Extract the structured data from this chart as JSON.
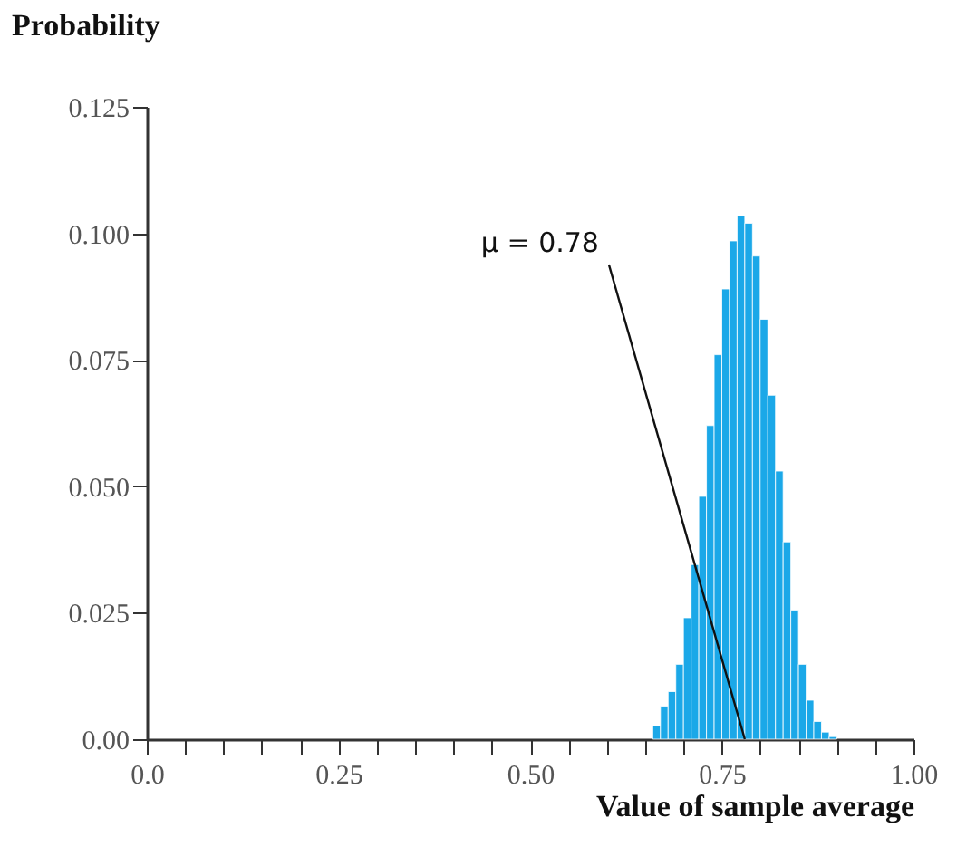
{
  "chart_data": {
    "type": "histogram",
    "xlabel": "Value of sample average",
    "ylabel": "Probability",
    "bins": [
      0.66,
      0.67,
      0.68,
      0.69,
      0.7,
      0.71,
      0.72,
      0.73,
      0.74,
      0.75,
      0.76,
      0.77,
      0.78,
      0.79,
      0.8,
      0.81,
      0.82,
      0.83,
      0.84,
      0.85,
      0.86,
      0.87,
      0.88,
      0.89,
      0.9
    ],
    "values": [
      0.0026,
      0.0065,
      0.0094,
      0.0148,
      0.024,
      0.0345,
      0.048,
      0.062,
      0.076,
      0.089,
      0.0985,
      0.1035,
      0.102,
      0.0955,
      0.083,
      0.068,
      0.053,
      0.039,
      0.0255,
      0.0148,
      0.0077,
      0.0035,
      0.0014,
      0.0005
    ],
    "color": "#1ba8e8",
    "xlim": [
      0,
      1.0
    ],
    "ylim": [
      0,
      0.125
    ],
    "xticks": [
      {
        "value": 0,
        "label": "0.0"
      },
      {
        "value": 0.05,
        "label": null
      },
      {
        "value": 0.1,
        "label": null
      },
      {
        "value": 0.15,
        "label": null
      },
      {
        "value": 0.2,
        "label": null
      },
      {
        "value": 0.25,
        "label": "0.25"
      },
      {
        "value": 0.3,
        "label": null
      },
      {
        "value": 0.35,
        "label": null
      },
      {
        "value": 0.4,
        "label": null
      },
      {
        "value": 0.45,
        "label": null
      },
      {
        "value": 0.5,
        "label": "0.50"
      },
      {
        "value": 0.55,
        "label": null
      },
      {
        "value": 0.6,
        "label": null
      },
      {
        "value": 0.65,
        "label": null
      },
      {
        "value": 0.7,
        "label": null
      },
      {
        "value": 0.75,
        "label": "0.75"
      },
      {
        "value": 0.8,
        "label": null
      },
      {
        "value": 0.85,
        "label": null
      },
      {
        "value": 0.9,
        "label": null
      },
      {
        "value": 0.95,
        "label": null
      },
      {
        "value": 1.0,
        "label": "1.00"
      }
    ],
    "yticks": [
      {
        "value": 0,
        "label": "0.00"
      },
      0.025,
      {
        "value": 0.05,
        "label": "0.050"
      },
      0.075,
      {
        "value": 0.1,
        "label": "0.100"
      },
      0.125
    ],
    "annotations": [
      {
        "text": "μ = 0.78",
        "x": 0.78,
        "y": 0
      }
    ],
    "grid": false
  }
}
